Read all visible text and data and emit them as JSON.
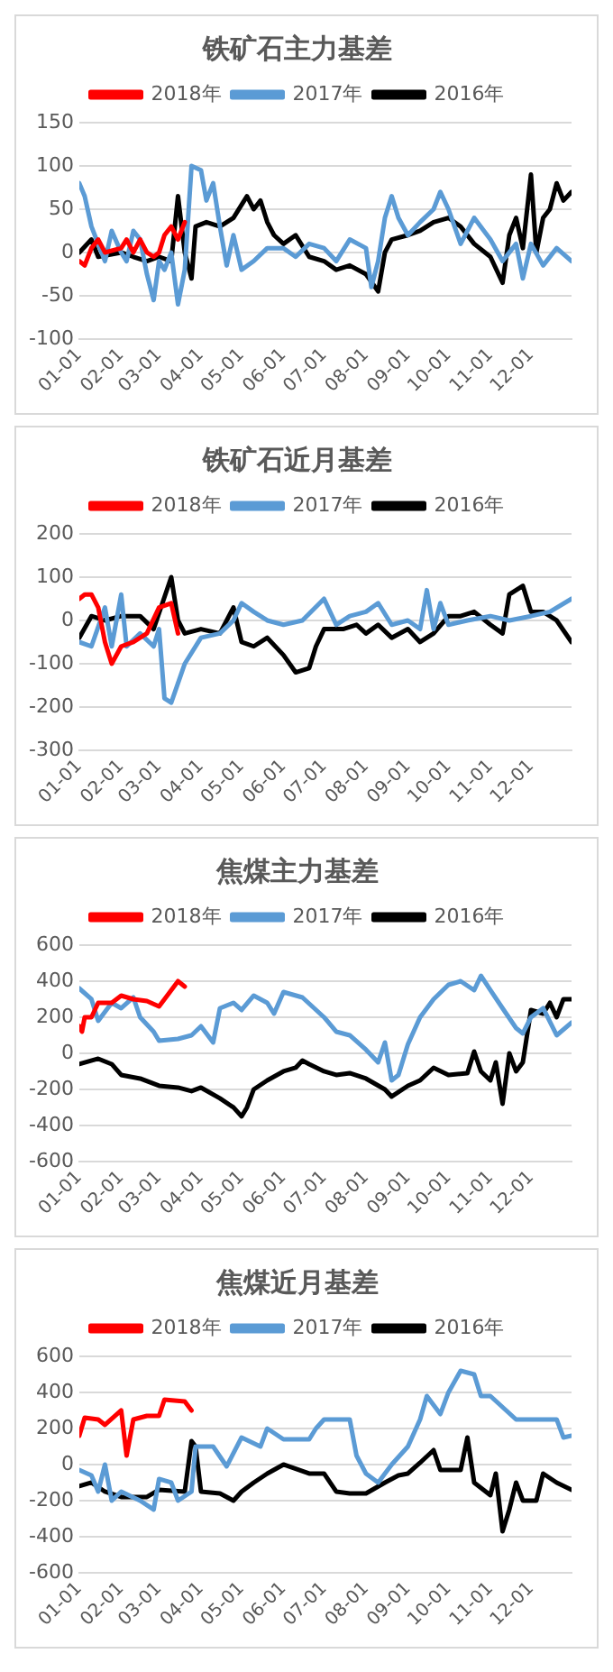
{
  "chart_data": [
    {
      "type": "line",
      "title": "铁矿石主力基差",
      "legend": "top",
      "grid": "y",
      "xlim": [
        "--01-01",
        "--12-31"
      ],
      "xticks": [
        {
          "value": "--01-01",
          "label": "01-01"
        },
        {
          "value": "--02-01",
          "label": "02-01"
        },
        {
          "value": "--03-01",
          "label": "03-01"
        },
        {
          "value": "--04-01",
          "label": "04-01"
        },
        {
          "value": "--05-01",
          "label": "05-01"
        },
        {
          "value": "--06-01",
          "label": "06-01"
        },
        {
          "value": "--07-01",
          "label": "07-01"
        },
        {
          "value": "--08-01",
          "label": "08-01"
        },
        {
          "value": "--09-01",
          "label": "09-01"
        },
        {
          "value": "--10-01",
          "label": "10-01"
        },
        {
          "value": "--11-01",
          "label": "11-01"
        },
        {
          "value": "--12-01",
          "label": "12-01"
        }
      ],
      "ylim": [
        -100,
        150
      ],
      "yticks": [
        -100,
        -50,
        0,
        50,
        100,
        150
      ],
      "series": [
        {
          "name": "2018年",
          "color": "#ff0000",
          "x": [
            "--01-01",
            "--01-05",
            "--01-10",
            "--01-15",
            "--01-20",
            "--02-01",
            "--02-05",
            "--02-10",
            "--02-15",
            "--02-20",
            "--02-25",
            "--03-01",
            "--03-05",
            "--03-10",
            "--03-15",
            "--03-20"
          ],
          "values": [
            -10,
            -15,
            5,
            15,
            0,
            5,
            15,
            0,
            15,
            0,
            -5,
            0,
            20,
            30,
            15,
            35
          ]
        },
        {
          "name": "2017年",
          "color": "#5b9bd5",
          "x": [
            "--01-01",
            "--01-05",
            "--01-10",
            "--01-15",
            "--01-20",
            "--01-25",
            "--02-01",
            "--02-05",
            "--02-10",
            "--02-15",
            "--02-20",
            "--02-25",
            "--03-01",
            "--03-05",
            "--03-10",
            "--03-15",
            "--03-20",
            "--03-25",
            "--04-01",
            "--04-05",
            "--04-10",
            "--04-15",
            "--04-20",
            "--04-25",
            "--05-01",
            "--05-10",
            "--05-20",
            "--06-01",
            "--06-10",
            "--06-20",
            "--07-01",
            "--07-10",
            "--07-20",
            "--08-01",
            "--08-05",
            "--08-10",
            "--08-15",
            "--08-20",
            "--08-25",
            "--09-01",
            "--09-10",
            "--09-20",
            "--09-25",
            "--10-01",
            "--10-10",
            "--10-20",
            "--11-01",
            "--11-10",
            "--11-20",
            "--11-25",
            "--12-01",
            "--12-10",
            "--12-20",
            "--12-31"
          ],
          "values": [
            80,
            65,
            30,
            10,
            -10,
            25,
            0,
            -10,
            25,
            15,
            -25,
            -55,
            -10,
            -20,
            0,
            -60,
            -20,
            100,
            95,
            60,
            80,
            30,
            -15,
            20,
            -20,
            -10,
            5,
            5,
            -5,
            10,
            5,
            -10,
            15,
            5,
            -40,
            -10,
            40,
            65,
            40,
            20,
            35,
            50,
            70,
            50,
            10,
            40,
            15,
            -10,
            10,
            -30,
            10,
            -15,
            5,
            -10
          ]
        },
        {
          "name": "2016年",
          "color": "#000000",
          "x": [
            "--01-01",
            "--01-10",
            "--01-15",
            "--02-01",
            "--02-10",
            "--02-20",
            "--03-01",
            "--03-10",
            "--03-15",
            "--03-20",
            "--03-25",
            "--03-28",
            "--04-05",
            "--04-15",
            "--04-25",
            "--05-01",
            "--05-05",
            "--05-10",
            "--05-15",
            "--05-20",
            "--05-25",
            "--06-01",
            "--06-10",
            "--06-20",
            "--07-01",
            "--07-10",
            "--07-20",
            "--08-01",
            "--08-10",
            "--08-15",
            "--08-20",
            "--09-01",
            "--09-10",
            "--09-20",
            "--10-01",
            "--10-10",
            "--10-20",
            "--11-01",
            "--11-10",
            "--11-15",
            "--11-20",
            "--11-25",
            "--12-01",
            "--12-05",
            "--12-10",
            "--12-15",
            "--12-20",
            "--12-25",
            "--12-31"
          ],
          "values": [
            0,
            15,
            -5,
            0,
            -5,
            -10,
            -5,
            -10,
            65,
            0,
            -30,
            30,
            35,
            30,
            40,
            55,
            65,
            50,
            60,
            35,
            20,
            10,
            20,
            -5,
            -10,
            -20,
            -15,
            -25,
            -45,
            0,
            15,
            20,
            25,
            35,
            40,
            30,
            10,
            -5,
            -35,
            20,
            40,
            5,
            90,
            0,
            40,
            50,
            80,
            60,
            70
          ]
        }
      ]
    },
    {
      "type": "line",
      "title": "铁矿石近月基差",
      "legend": "top",
      "grid": "y",
      "xlim": [
        "--01-01",
        "--12-31"
      ],
      "xticks": [
        {
          "value": "--01-01",
          "label": "01-01"
        },
        {
          "value": "--02-01",
          "label": "02-01"
        },
        {
          "value": "--03-01",
          "label": "03-01"
        },
        {
          "value": "--04-01",
          "label": "04-01"
        },
        {
          "value": "--05-01",
          "label": "05-01"
        },
        {
          "value": "--06-01",
          "label": "06-01"
        },
        {
          "value": "--07-01",
          "label": "07-01"
        },
        {
          "value": "--08-01",
          "label": "08-01"
        },
        {
          "value": "--09-01",
          "label": "09-01"
        },
        {
          "value": "--10-01",
          "label": "10-01"
        },
        {
          "value": "--11-01",
          "label": "11-01"
        },
        {
          "value": "--12-01",
          "label": "12-01"
        }
      ],
      "ylim": [
        -300,
        200
      ],
      "yticks": [
        -300,
        -200,
        -100,
        0,
        100,
        200
      ],
      "series": [
        {
          "name": "2018年",
          "color": "#ff0000",
          "x": [
            "--01-01",
            "--01-05",
            "--01-10",
            "--01-15",
            "--01-20",
            "--01-25",
            "--02-01",
            "--02-10",
            "--02-20",
            "--03-01",
            "--03-10",
            "--03-15"
          ],
          "values": [
            50,
            60,
            60,
            30,
            -50,
            -100,
            -60,
            -50,
            -30,
            30,
            40,
            -30
          ]
        },
        {
          "name": "2017年",
          "color": "#5b9bd5",
          "x": [
            "--01-01",
            "--01-10",
            "--01-20",
            "--01-25",
            "--02-01",
            "--02-05",
            "--02-15",
            "--02-25",
            "--03-01",
            "--03-05",
            "--03-10",
            "--03-20",
            "--04-01",
            "--04-15",
            "--04-25",
            "--05-01",
            "--05-10",
            "--05-20",
            "--06-01",
            "--06-15",
            "--07-01",
            "--07-10",
            "--07-20",
            "--08-01",
            "--08-10",
            "--08-20",
            "--09-01",
            "--09-10",
            "--09-15",
            "--09-20",
            "--09-25",
            "--10-01",
            "--10-15",
            "--11-01",
            "--11-15",
            "--12-01",
            "--12-15",
            "--12-31"
          ],
          "values": [
            -50,
            -60,
            30,
            -60,
            60,
            -60,
            -30,
            -60,
            -20,
            -180,
            -190,
            -100,
            -40,
            -30,
            0,
            40,
            20,
            0,
            -10,
            0,
            50,
            -10,
            10,
            20,
            40,
            -10,
            0,
            -20,
            70,
            -20,
            40,
            -10,
            0,
            10,
            0,
            10,
            20,
            50
          ]
        },
        {
          "name": "2016年",
          "color": "#000000",
          "x": [
            "--01-01",
            "--01-10",
            "--01-20",
            "--02-01",
            "--02-15",
            "--02-25",
            "--03-10",
            "--03-15",
            "--03-20",
            "--04-01",
            "--04-15",
            "--04-25",
            "--05-01",
            "--05-10",
            "--05-20",
            "--06-01",
            "--06-10",
            "--06-20",
            "--06-25",
            "--07-01",
            "--07-15",
            "--07-25",
            "--08-01",
            "--08-10",
            "--08-20",
            "--09-01",
            "--09-10",
            "--09-20",
            "--10-01",
            "--10-10",
            "--10-20",
            "--11-01",
            "--11-10",
            "--11-15",
            "--11-25",
            "--12-01",
            "--12-10",
            "--12-20",
            "--12-31"
          ],
          "values": [
            -40,
            10,
            0,
            10,
            10,
            -20,
            100,
            0,
            -30,
            -20,
            -30,
            30,
            -50,
            -60,
            -40,
            -80,
            -120,
            -110,
            -60,
            -20,
            -20,
            -10,
            -30,
            -10,
            -40,
            -20,
            -50,
            -30,
            10,
            10,
            20,
            -10,
            -30,
            60,
            80,
            20,
            20,
            0,
            -50
          ]
        }
      ]
    },
    {
      "type": "line",
      "title": "焦煤主力基差",
      "legend": "top",
      "grid": "y",
      "xlim": [
        "--01-01",
        "--12-31"
      ],
      "xticks": [
        {
          "value": "--01-01",
          "label": "01-01"
        },
        {
          "value": "--02-01",
          "label": "02-01"
        },
        {
          "value": "--03-01",
          "label": "03-01"
        },
        {
          "value": "--04-01",
          "label": "04-01"
        },
        {
          "value": "--05-01",
          "label": "05-01"
        },
        {
          "value": "--06-01",
          "label": "06-01"
        },
        {
          "value": "--07-01",
          "label": "07-01"
        },
        {
          "value": "--08-01",
          "label": "08-01"
        },
        {
          "value": "--09-01",
          "label": "09-01"
        },
        {
          "value": "--10-01",
          "label": "10-01"
        },
        {
          "value": "--11-01",
          "label": "11-01"
        },
        {
          "value": "--12-01",
          "label": "12-01"
        }
      ],
      "ylim": [
        -600,
        600
      ],
      "yticks": [
        -600,
        -400,
        -200,
        0,
        200,
        400,
        600
      ],
      "series": [
        {
          "name": "2018年",
          "color": "#ff0000",
          "x": [
            "--01-01",
            "--01-03",
            "--01-05",
            "--01-10",
            "--01-15",
            "--01-25",
            "--02-01",
            "--02-10",
            "--02-20",
            "--03-01",
            "--03-05",
            "--03-10",
            "--03-15",
            "--03-20"
          ],
          "values": [
            150,
            120,
            200,
            200,
            280,
            280,
            320,
            300,
            290,
            260,
            300,
            350,
            400,
            370
          ]
        },
        {
          "name": "2017年",
          "color": "#5b9bd5",
          "x": [
            "--01-01",
            "--01-10",
            "--01-15",
            "--01-25",
            "--02-01",
            "--02-10",
            "--02-15",
            "--02-25",
            "--03-01",
            "--03-15",
            "--03-25",
            "--04-01",
            "--04-10",
            "--04-15",
            "--04-25",
            "--05-01",
            "--05-10",
            "--05-20",
            "--05-25",
            "--06-01",
            "--06-15",
            "--07-01",
            "--07-10",
            "--07-20",
            "--08-01",
            "--08-10",
            "--08-15",
            "--08-20",
            "--08-25",
            "--09-01",
            "--09-10",
            "--09-20",
            "--10-01",
            "--10-10",
            "--10-20",
            "--10-25",
            "--11-01",
            "--11-10",
            "--11-20",
            "--11-25",
            "--12-01",
            "--12-10",
            "--12-20",
            "--12-31"
          ],
          "values": [
            360,
            300,
            180,
            280,
            250,
            310,
            200,
            120,
            70,
            80,
            100,
            150,
            60,
            250,
            280,
            240,
            320,
            280,
            220,
            340,
            310,
            200,
            120,
            100,
            20,
            -50,
            60,
            -150,
            -120,
            50,
            200,
            300,
            380,
            400,
            350,
            430,
            350,
            250,
            140,
            110,
            200,
            250,
            100,
            170
          ]
        },
        {
          "name": "2016年",
          "color": "#000000",
          "x": [
            "--01-01",
            "--01-15",
            "--01-25",
            "--02-01",
            "--02-15",
            "--03-01",
            "--03-15",
            "--03-25",
            "--04-01",
            "--04-15",
            "--04-25",
            "--05-01",
            "--05-05",
            "--05-10",
            "--05-20",
            "--06-01",
            "--06-10",
            "--06-15",
            "--06-20",
            "--07-01",
            "--07-10",
            "--07-20",
            "--08-01",
            "--08-15",
            "--08-20",
            "--09-01",
            "--09-10",
            "--09-20",
            "--10-01",
            "--10-15",
            "--10-20",
            "--10-25",
            "--11-01",
            "--11-05",
            "--11-10",
            "--11-15",
            "--11-20",
            "--11-25",
            "--12-01",
            "--12-10",
            "--12-15",
            "--12-20",
            "--12-25",
            "--12-31"
          ],
          "values": [
            -60,
            -30,
            -60,
            -120,
            -140,
            -180,
            -190,
            -210,
            -190,
            -250,
            -300,
            -350,
            -300,
            -200,
            -150,
            -100,
            -80,
            -40,
            -60,
            -100,
            -120,
            -110,
            -140,
            -200,
            -240,
            -180,
            -150,
            -80,
            -120,
            -110,
            10,
            -100,
            -150,
            -50,
            -280,
            0,
            -100,
            -50,
            240,
            220,
            280,
            200,
            300,
            300
          ]
        }
      ]
    },
    {
      "type": "line",
      "title": "焦煤近月基差",
      "legend": "top",
      "grid": "y",
      "xlim": [
        "--01-01",
        "--12-31"
      ],
      "xticks": [
        {
          "value": "--01-01",
          "label": "01-01"
        },
        {
          "value": "--02-01",
          "label": "02-01"
        },
        {
          "value": "--03-01",
          "label": "03-01"
        },
        {
          "value": "--04-01",
          "label": "04-01"
        },
        {
          "value": "--05-01",
          "label": "05-01"
        },
        {
          "value": "--06-01",
          "label": "06-01"
        },
        {
          "value": "--07-01",
          "label": "07-01"
        },
        {
          "value": "--08-01",
          "label": "08-01"
        },
        {
          "value": "--09-01",
          "label": "09-01"
        },
        {
          "value": "--10-01",
          "label": "10-01"
        },
        {
          "value": "--11-01",
          "label": "11-01"
        },
        {
          "value": "--12-01",
          "label": "12-01"
        }
      ],
      "ylim": [
        -600,
        600
      ],
      "yticks": [
        -600,
        -400,
        -200,
        0,
        200,
        400,
        600
      ],
      "series": [
        {
          "name": "2018年",
          "color": "#ff0000",
          "x": [
            "--01-01",
            "--01-05",
            "--01-15",
            "--01-20",
            "--02-01",
            "--02-05",
            "--02-10",
            "--02-20",
            "--03-01",
            "--03-05",
            "--03-20",
            "--03-25"
          ],
          "values": [
            160,
            260,
            250,
            220,
            300,
            50,
            250,
            270,
            270,
            360,
            350,
            300
          ]
        },
        {
          "name": "2017年",
          "color": "#5b9bd5",
          "x": [
            "--01-01",
            "--01-10",
            "--01-15",
            "--01-20",
            "--01-25",
            "--02-01",
            "--02-15",
            "--02-25",
            "--03-01",
            "--03-10",
            "--03-15",
            "--03-25",
            "--03-28",
            "--04-10",
            "--04-20",
            "--05-01",
            "--05-15",
            "--05-20",
            "--06-01",
            "--06-20",
            "--06-25",
            "--07-01",
            "--07-20",
            "--07-25",
            "--08-01",
            "--08-10",
            "--08-20",
            "--09-01",
            "--09-10",
            "--09-15",
            "--09-25",
            "--10-01",
            "--10-10",
            "--10-20",
            "--10-25",
            "--11-01",
            "--11-20",
            "--12-01",
            "--12-20",
            "--12-25",
            "--12-31"
          ],
          "values": [
            -30,
            -60,
            -150,
            0,
            -200,
            -150,
            -200,
            -250,
            -80,
            -100,
            -200,
            -150,
            100,
            100,
            -10,
            150,
            100,
            200,
            140,
            140,
            200,
            250,
            250,
            50,
            -50,
            -100,
            0,
            100,
            250,
            380,
            280,
            400,
            520,
            500,
            380,
            380,
            250,
            250,
            250,
            150,
            160
          ]
        },
        {
          "name": "2016年",
          "color": "#000000",
          "x": [
            "--01-01",
            "--01-10",
            "--01-20",
            "--02-01",
            "--02-20",
            "--03-01",
            "--03-20",
            "--03-25",
            "--03-28",
            "--04-01",
            "--04-15",
            "--04-25",
            "--05-01",
            "--05-10",
            "--05-20",
            "--06-01",
            "--06-20",
            "--07-01",
            "--07-10",
            "--07-20",
            "--08-01",
            "--08-15",
            "--08-25",
            "--09-01",
            "--09-10",
            "--09-20",
            "--09-25",
            "--10-10",
            "--10-15",
            "--10-20",
            "--11-01",
            "--11-05",
            "--11-10",
            "--11-15",
            "--11-20",
            "--11-25",
            "--12-05",
            "--12-10",
            "--12-20",
            "--12-31"
          ],
          "values": [
            -120,
            -100,
            -150,
            -180,
            -180,
            -140,
            -150,
            130,
            100,
            -150,
            -160,
            -200,
            -150,
            -100,
            -50,
            0,
            -50,
            -50,
            -150,
            -160,
            -160,
            -100,
            -60,
            -50,
            10,
            80,
            -30,
            -30,
            150,
            -100,
            -170,
            -50,
            -370,
            -250,
            -100,
            -200,
            -200,
            -50,
            -100,
            -140
          ]
        }
      ]
    }
  ]
}
